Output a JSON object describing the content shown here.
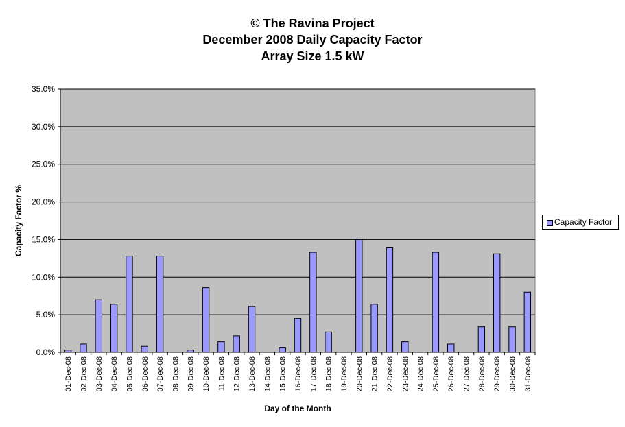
{
  "chart_data": {
    "type": "bar",
    "title_lines": [
      "© The Ravina Project",
      "December 2008 Daily Capacity Factor",
      "Array Size 1.5 kW"
    ],
    "xlabel": "Day of the Month",
    "ylabel": "Capacity Factor %",
    "ylim": [
      0,
      35
    ],
    "yticks": [
      "0.0%",
      "5.0%",
      "10.0%",
      "15.0%",
      "20.0%",
      "25.0%",
      "30.0%",
      "35.0%"
    ],
    "grid": true,
    "legend_position": "right",
    "colors": {
      "bar": "#9999ff",
      "plot_background": "#c0c0c0"
    },
    "categories": [
      "01-Dec-08",
      "02-Dec-08",
      "03-Dec-08",
      "04-Dec-08",
      "05-Dec-08",
      "06-Dec-08",
      "07-Dec-08",
      "08-Dec-08",
      "09-Dec-08",
      "10-Dec-08",
      "11-Dec-08",
      "12-Dec-08",
      "13-Dec-08",
      "14-Dec-08",
      "15-Dec-08",
      "16-Dec-08",
      "17-Dec-08",
      "18-Dec-08",
      "19-Dec-08",
      "20-Dec-08",
      "21-Dec-08",
      "22-Dec-08",
      "23-Dec-08",
      "24-Dec-08",
      "25-Dec-08",
      "26-Dec-08",
      "27-Dec-08",
      "28-Dec-08",
      "29-Dec-08",
      "30-Dec-08",
      "31-Dec-08"
    ],
    "series": [
      {
        "name": "Capacity Factor",
        "values": [
          0.3,
          1.1,
          7.0,
          6.4,
          12.8,
          0.8,
          12.8,
          0.0,
          0.3,
          8.6,
          1.4,
          2.2,
          6.1,
          0.0,
          0.6,
          4.5,
          13.3,
          2.7,
          0.0,
          15.0,
          6.4,
          13.9,
          1.4,
          0.0,
          13.3,
          1.1,
          0.0,
          3.4,
          13.1,
          3.4,
          8.0
        ]
      }
    ]
  }
}
